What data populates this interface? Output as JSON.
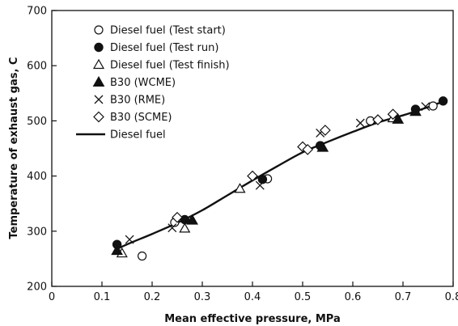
{
  "chart_data": {
    "type": "scatter",
    "xlabel": "Mean effective pressure, MPa",
    "ylabel": "Temperature of exhaust gas, C",
    "xlim": [
      0,
      0.8
    ],
    "ylim": [
      200,
      700
    ],
    "xticks": [
      0,
      0.1,
      0.2,
      0.3,
      0.4,
      0.5,
      0.6,
      0.7,
      0.8
    ],
    "xtick_labels": [
      "0",
      "0.1",
      "0.2",
      "0.3",
      "0.4",
      "0.5",
      "0.6",
      "0.7",
      "0.8"
    ],
    "yticks": [
      200,
      300,
      400,
      500,
      600,
      700
    ],
    "ytick_labels": [
      "200",
      "300",
      "400",
      "500",
      "600",
      "700"
    ],
    "grid": false,
    "legend_position": "top-left",
    "series": [
      {
        "name": "Diesel fuel (Test start)",
        "marker": "circle-open",
        "points": [
          [
            0.18,
            255
          ],
          [
            0.245,
            316
          ],
          [
            0.43,
            395
          ],
          [
            0.635,
            500
          ],
          [
            0.76,
            527
          ]
        ]
      },
      {
        "name": "Diesel fuel (Test run)",
        "marker": "circle-filled",
        "points": [
          [
            0.13,
            276
          ],
          [
            0.265,
            321
          ],
          [
            0.42,
            394
          ],
          [
            0.535,
            455
          ],
          [
            0.725,
            521
          ],
          [
            0.78,
            536
          ]
        ]
      },
      {
        "name": "Diesel fuel (Test finish)",
        "marker": "triangle-open",
        "points": [
          [
            0.14,
            260
          ],
          [
            0.265,
            305
          ],
          [
            0.375,
            377
          ],
          [
            0.68,
            505
          ]
        ]
      },
      {
        "name": "B30 (WCME)",
        "marker": "triangle-filled",
        "points": [
          [
            0.13,
            265
          ],
          [
            0.28,
            320
          ],
          [
            0.54,
            452
          ],
          [
            0.69,
            503
          ],
          [
            0.725,
            517
          ]
        ]
      },
      {
        "name": "B30 (RME)",
        "marker": "cross",
        "points": [
          [
            0.155,
            285
          ],
          [
            0.24,
            306
          ],
          [
            0.415,
            383
          ],
          [
            0.535,
            478
          ],
          [
            0.615,
            496
          ],
          [
            0.745,
            526
          ]
        ]
      },
      {
        "name": "B30 (SCME)",
        "marker": "diamond-open",
        "points": [
          [
            0.25,
            325
          ],
          [
            0.4,
            400
          ],
          [
            0.5,
            453
          ],
          [
            0.51,
            448
          ],
          [
            0.545,
            483
          ],
          [
            0.65,
            502
          ],
          [
            0.68,
            512
          ]
        ]
      },
      {
        "name": "Diesel fuel",
        "marker": "line",
        "points": [
          [
            0.13,
            268
          ],
          [
            0.16,
            280
          ],
          [
            0.2,
            295
          ],
          [
            0.25,
            315
          ],
          [
            0.3,
            338
          ],
          [
            0.35,
            365
          ],
          [
            0.4,
            392
          ],
          [
            0.45,
            418
          ],
          [
            0.5,
            443
          ],
          [
            0.55,
            462
          ],
          [
            0.6,
            480
          ],
          [
            0.65,
            497
          ],
          [
            0.7,
            510
          ],
          [
            0.75,
            525
          ],
          [
            0.78,
            535
          ]
        ]
      }
    ]
  }
}
